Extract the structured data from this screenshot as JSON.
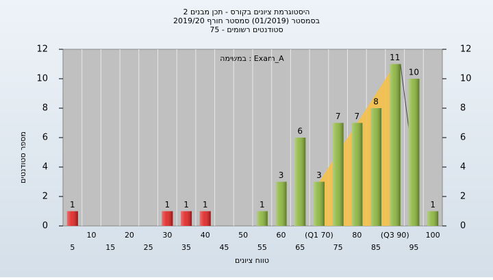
{
  "chart_data": {
    "type": "bar",
    "title": "היסטוגרמת ציונים בקורס - תכן מבנים 2",
    "subtitle": "בסמסטר  (01/2019)  סמסטר חורף 2019/20",
    "subtitle2": "סטודנטים רשומים - 75",
    "annotation": "במשימה : Exam_A",
    "x_label": "טווח ציונים",
    "y_label": "מספר סטודנטים",
    "categories": [
      "5",
      "10",
      "15",
      "20",
      "25",
      "30",
      "35",
      "40",
      "45",
      "50",
      "55",
      "60",
      "65",
      "(Q1 70)",
      "75",
      "80",
      "85",
      "(Q3 90)",
      "95",
      "100"
    ],
    "values": [
      1,
      0,
      0,
      0,
      0,
      1,
      1,
      1,
      0,
      0,
      1,
      3,
      6,
      3,
      7,
      7,
      8,
      11,
      10,
      1
    ],
    "colors": [
      "#e02020",
      "#e02020",
      "#e02020",
      "#e02020",
      "#e02020",
      "#e02020",
      "#e02020",
      "#e02020",
      "#e02020",
      "#e02020",
      "#8ab43a",
      "#8ab43a",
      "#8ab43a",
      "#8ab43a",
      "#8ab43a",
      "#8ab43a",
      "#8ab43a",
      "#8ab43a",
      "#8ab43a",
      "#8ab43a"
    ],
    "ylim": [
      0,
      12
    ],
    "yticks": [
      0,
      2,
      4,
      6,
      8,
      10,
      12
    ],
    "y2lim": [
      0,
      12
    ],
    "y2ticks": [
      0,
      2,
      4,
      6,
      8,
      10,
      12
    ]
  }
}
